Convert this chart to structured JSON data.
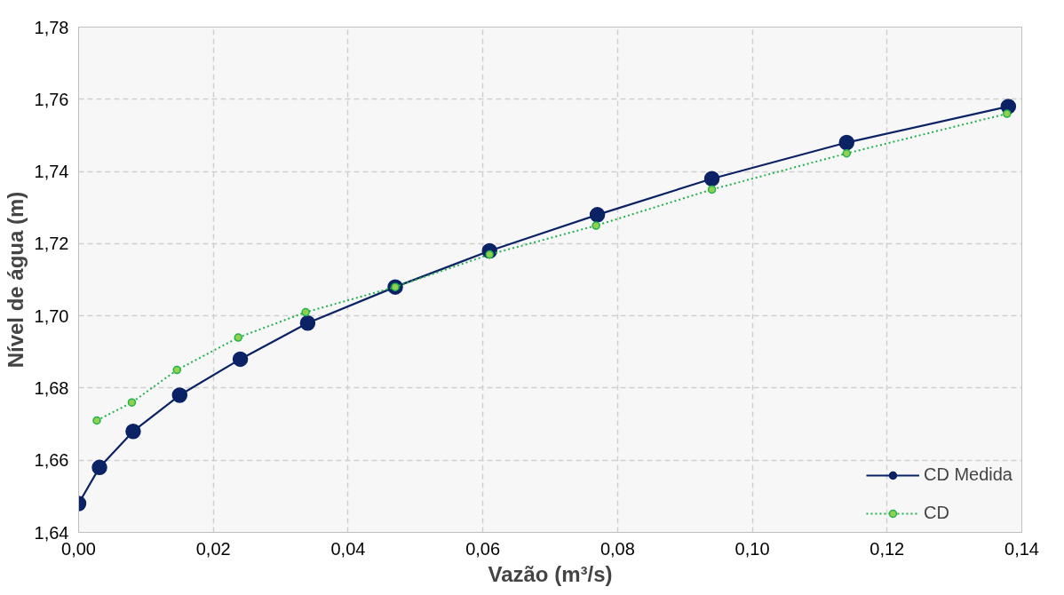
{
  "chart_data": {
    "type": "line",
    "xlabel": "Vazão (m³/s)",
    "ylabel": "Nível de água (m)",
    "xlim": [
      0,
      0.14
    ],
    "ylim": [
      1.64,
      1.78
    ],
    "xticks": [
      {
        "value": 0,
        "label": "0,00"
      },
      {
        "value": 0.02,
        "label": "0,02"
      },
      {
        "value": 0.04,
        "label": "0,04"
      },
      {
        "value": 0.06,
        "label": "0,06"
      },
      {
        "value": 0.08,
        "label": "0,08"
      },
      {
        "value": 0.1,
        "label": "0,10"
      },
      {
        "value": 0.12,
        "label": "0,12"
      },
      {
        "value": 0.14,
        "label": "0,14"
      }
    ],
    "yticks": [
      {
        "value": 1.64,
        "label": "1,64"
      },
      {
        "value": 1.66,
        "label": "1,66"
      },
      {
        "value": 1.68,
        "label": "1,68"
      },
      {
        "value": 1.7,
        "label": "1,70"
      },
      {
        "value": 1.72,
        "label": "1,72"
      },
      {
        "value": 1.74,
        "label": "1,74"
      },
      {
        "value": 1.76,
        "label": "1,76"
      },
      {
        "value": 1.78,
        "label": "1,78"
      }
    ],
    "grid": true,
    "legend": "bottom right",
    "series": [
      {
        "name": "CD Medida",
        "color": "#0b2265",
        "marker": "circle",
        "line_style": "solid",
        "x": [
          0,
          0.0031,
          0.0081,
          0.015,
          0.024,
          0.034,
          0.047,
          0.061,
          0.077,
          0.094,
          0.114,
          0.138
        ],
        "values": [
          1.648,
          1.658,
          1.668,
          1.678,
          1.688,
          1.698,
          1.708,
          1.718,
          1.728,
          1.738,
          1.748,
          1.758
        ]
      },
      {
        "name": "CD",
        "color": "#22b24c",
        "marker": "circle",
        "line_style": "dotted",
        "x": [
          0.0027,
          0.0079,
          0.0146,
          0.0237,
          0.0337,
          0.047,
          0.061,
          0.0768,
          0.094,
          0.114,
          0.1378
        ],
        "values": [
          1.671,
          1.676,
          1.685,
          1.694,
          1.701,
          1.708,
          1.717,
          1.725,
          1.735,
          1.745,
          1.756
        ]
      }
    ]
  }
}
